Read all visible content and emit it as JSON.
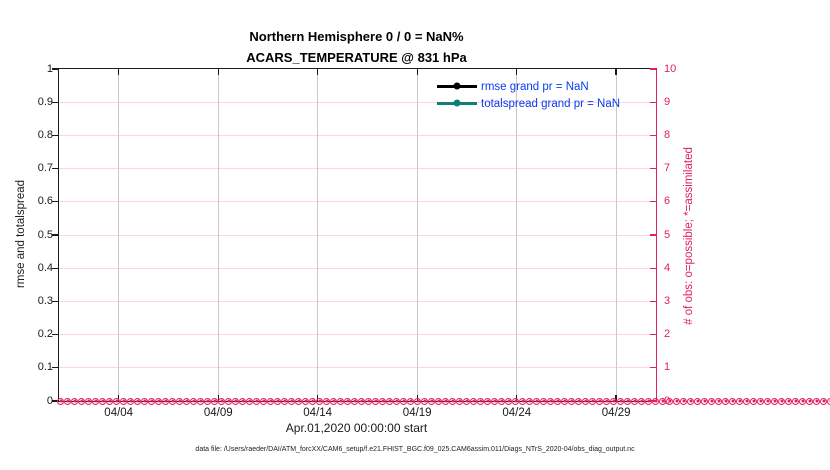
{
  "figure": {
    "title": "Northern Hemisphere 0 / 0 = NaN%",
    "subtitle": "ACARS_TEMPERATURE @ 831 hPa",
    "caption": "data file: /Users/raeder/DAI/ATM_forcXX/CAM6_setup/f.e21.FHIST_BGC.f09_025.CAM6assim.011/Diags_NTrS_2020-04/obs_diag_output.nc"
  },
  "chart_data": {
    "type": "line",
    "title": "Northern Hemisphere 0 / 0 = NaN%",
    "subtitle": "ACARS_TEMPERATURE @ 831 hPa",
    "x_axis": {
      "label": "Apr.01,2020 00:00:00 start",
      "range_days": 30,
      "ticks": [
        {
          "label": "04/04",
          "pos": 0.1
        },
        {
          "label": "04/09",
          "pos": 0.2667
        },
        {
          "label": "04/14",
          "pos": 0.4333
        },
        {
          "label": "04/19",
          "pos": 0.6
        },
        {
          "label": "04/24",
          "pos": 0.7667
        },
        {
          "label": "04/29",
          "pos": 0.9333
        }
      ]
    },
    "y_axis_left": {
      "label": "rmse and totalspread",
      "lim": [
        0,
        1
      ],
      "ticks": [
        "0",
        "0.1",
        "0.2",
        "0.3",
        "0.4",
        "0.5",
        "0.6",
        "0.7",
        "0.8",
        "0.9",
        "1"
      ],
      "color": "#1a1a1a"
    },
    "y_axis_right": {
      "label": "# of obs: o=possible; *=assimilated",
      "lim": [
        0,
        10
      ],
      "ticks": [
        "0",
        "1",
        "2",
        "3",
        "4",
        "5",
        "6",
        "7",
        "8",
        "9",
        "10"
      ],
      "color": "#e02060"
    },
    "legend": [
      {
        "label": "rmse grand pr = NaN",
        "color": "#000000"
      },
      {
        "label": "totalspread grand pr = NaN",
        "color": "#0f8077"
      }
    ],
    "series": [
      {
        "name": "rmse",
        "axis": "left",
        "grand_mean": "NaN",
        "values": "all NaN (no curve drawn)"
      },
      {
        "name": "totalspread",
        "axis": "left",
        "grand_mean": "NaN",
        "values": "all NaN (no curve drawn)"
      },
      {
        "name": "possible obs (o)",
        "axis": "right",
        "constant_value": 0,
        "n_times": 120
      },
      {
        "name": "assimilated obs (*)",
        "axis": "right",
        "constant_value": 0,
        "n_times": 120
      }
    ],
    "obs_band": {
      "n_markers": 120,
      "value": 0,
      "color": "#e02060"
    },
    "grid": {
      "horizontal_color": "#f8d8e4",
      "vertical_color": "#ccc7ca"
    },
    "legend_text_color": "#0a3cf0"
  }
}
